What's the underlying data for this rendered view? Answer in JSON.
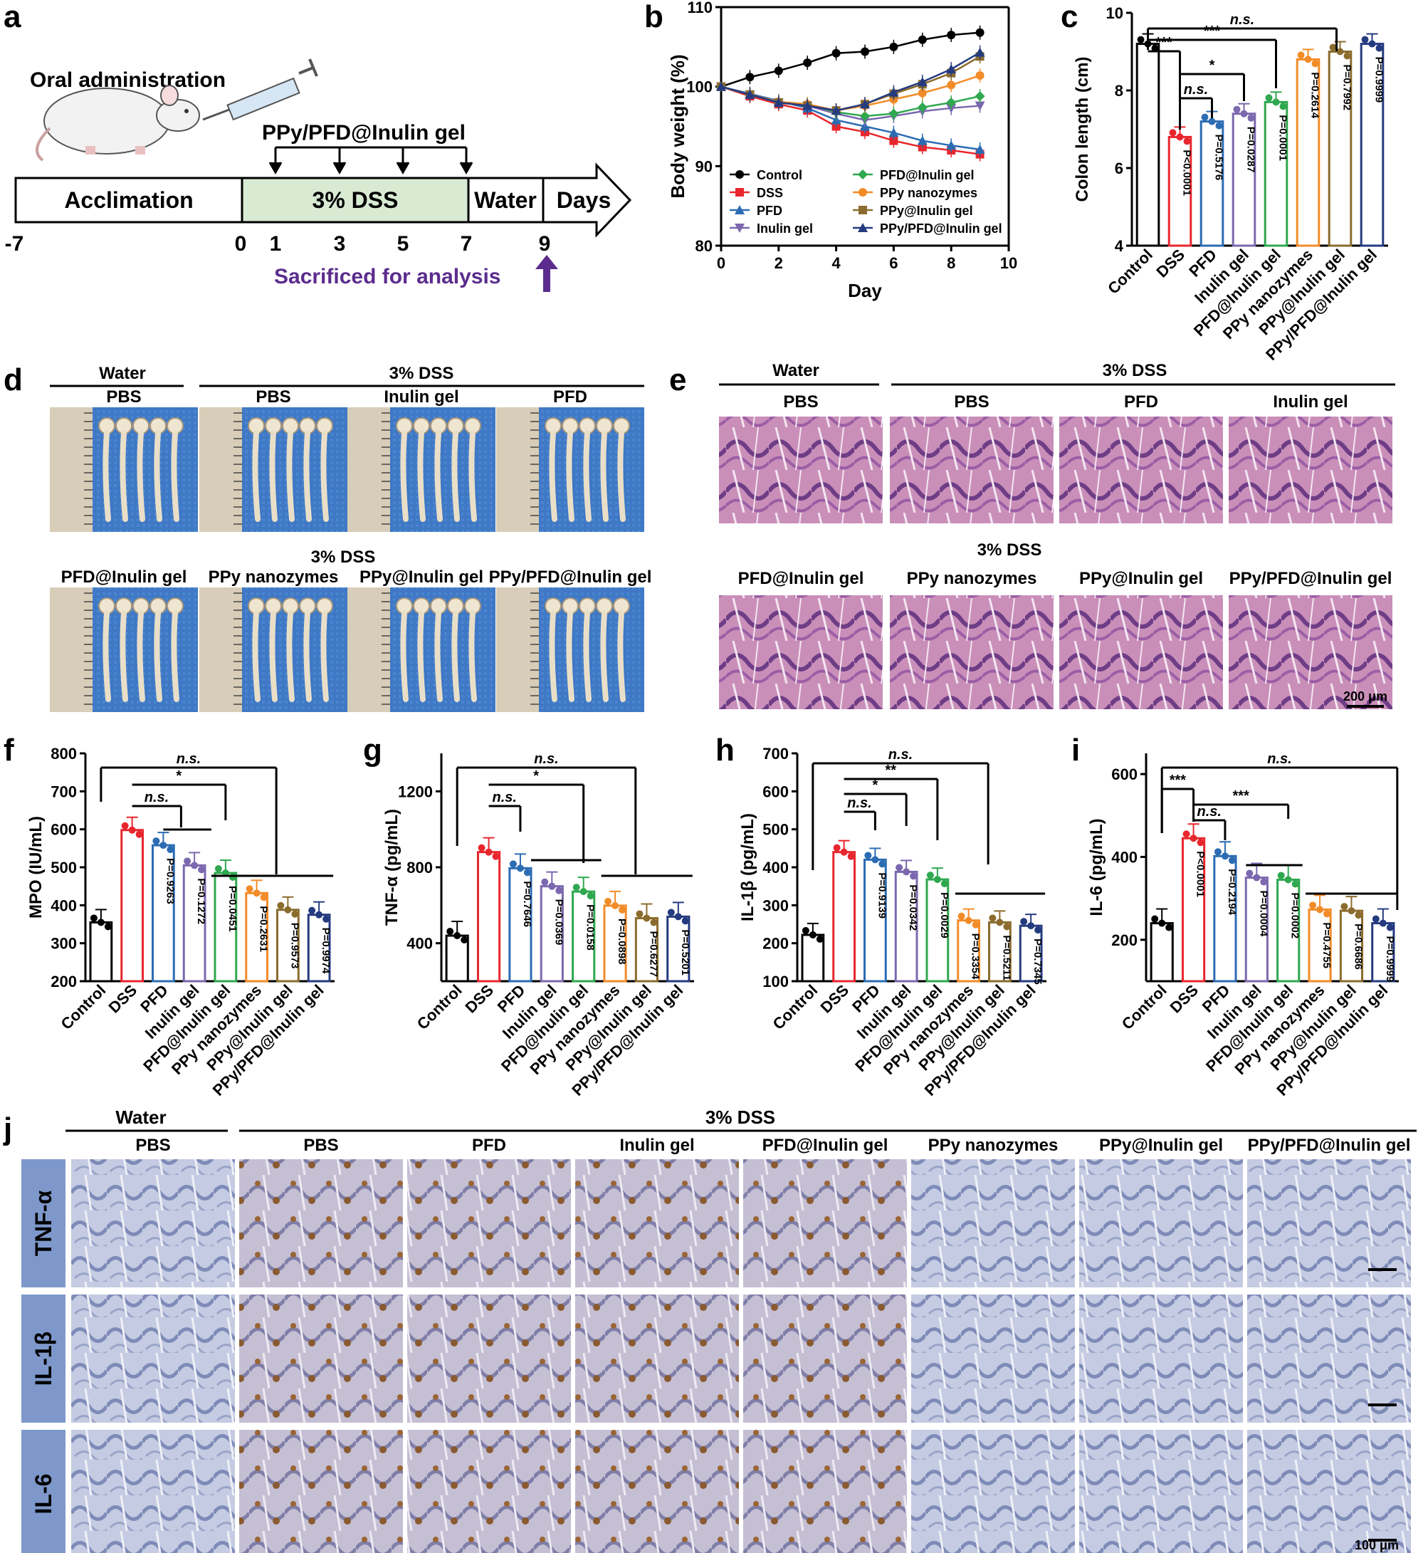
{
  "panel_letters": [
    "a",
    "b",
    "c",
    "d",
    "e",
    "f",
    "g",
    "h",
    "i",
    "j"
  ],
  "panel_a": {
    "title": "Oral administration",
    "treatment": "PPy/PFD@Inulin gel",
    "phases": [
      "Acclimation",
      "3% DSS",
      "Water",
      "Days"
    ],
    "ticks": [
      "-7",
      "0",
      "1",
      "3",
      "5",
      "7",
      "9"
    ],
    "sacrifice": "Sacrificed for analysis",
    "colors": {
      "dss_phase": "#d9ead3",
      "arrow": "#5b2c8d"
    }
  },
  "groups": [
    "Control",
    "DSS",
    "PFD",
    "Inulin gel",
    "PFD@Inulin gel",
    "PPy nanozymes",
    "PPy@Inulin gel",
    "PPy/PFD@Inulin gel"
  ],
  "group_colors": [
    "#000000",
    "#e8262d",
    "#2b6cb3",
    "#7b68ae",
    "#2fa84f",
    "#f28c28",
    "#8b6c2e",
    "#253b80"
  ],
  "significance": {
    "ns": "n.s.",
    "one": "*",
    "two": "**",
    "three": "***"
  },
  "chart_data": [
    {
      "id": "b",
      "type": "line",
      "xlabel": "Day",
      "ylabel": "Body weight (%)",
      "xlim": [
        0,
        10
      ],
      "ylim": [
        80,
        110
      ],
      "xticks": [
        "0",
        "2",
        "4",
        "6",
        "8",
        "10"
      ],
      "yticks": [
        "80",
        "90",
        "100",
        "110"
      ],
      "x": [
        0,
        1,
        2,
        3,
        4,
        5,
        6,
        7,
        8,
        9
      ],
      "legend": [
        "Control",
        "DSS",
        "PFD",
        "Inulin gel",
        "PFD@Inulin gel",
        "PPy nanozymes",
        "PPy@Inulin gel",
        "PPy/PFD@Inulin gel"
      ],
      "series": [
        {
          "name": "Control",
          "values": [
            100,
            101.2,
            102,
            103,
            104.2,
            104.4,
            105,
            105.9,
            106.5,
            106.8
          ]
        },
        {
          "name": "DSS",
          "values": [
            100,
            98.8,
            97.8,
            97,
            95,
            94.3,
            93.2,
            92.4,
            92,
            91.5
          ]
        },
        {
          "name": "PFD",
          "values": [
            100,
            99.1,
            98.2,
            97.3,
            95.8,
            95,
            94.2,
            93.2,
            92.6,
            92.1
          ]
        },
        {
          "name": "Inulin gel",
          "values": [
            100,
            99,
            98,
            97.6,
            96.6,
            95.8,
            96.3,
            96.9,
            97.3,
            97.6
          ]
        },
        {
          "name": "PFD@Inulin gel",
          "values": [
            100,
            99,
            98,
            97.8,
            96.8,
            96.3,
            96.6,
            97.4,
            98,
            98.8
          ]
        },
        {
          "name": "PPy nanozymes",
          "values": [
            100,
            99,
            98.1,
            97.8,
            97,
            97.6,
            98.4,
            99.2,
            100.2,
            101.4
          ]
        },
        {
          "name": "PPy@Inulin gel",
          "values": [
            100,
            99,
            98,
            97.6,
            97,
            97.8,
            99.1,
            100.3,
            101.7,
            103.8
          ]
        },
        {
          "name": "PPy/PFD@Inulin gel",
          "values": [
            100,
            99,
            98,
            97.6,
            97,
            97.8,
            99.3,
            100.6,
            102.2,
            104.3
          ]
        }
      ]
    },
    {
      "id": "c",
      "type": "bar",
      "ylabel": "Colon length (cm)",
      "ylim": [
        4,
        10
      ],
      "yticks": [
        "4",
        "6",
        "8",
        "10"
      ],
      "values": [
        9.2,
        6.8,
        7.2,
        7.4,
        7.7,
        8.8,
        9.0,
        9.2
      ],
      "p_values": [
        "",
        "P<0.0001",
        "P=0.5176",
        "P=0.0287",
        "P=0.0001",
        "P=0.2614",
        "P=0.7992",
        "P=0.9999"
      ]
    },
    {
      "id": "f",
      "type": "bar",
      "ylabel": "MPO (IU/mL)",
      "ylim": [
        200,
        800
      ],
      "yticks": [
        "200",
        "300",
        "400",
        "500",
        "600",
        "700",
        "800"
      ],
      "values": [
        355,
        598,
        558,
        505,
        485,
        432,
        388,
        375
      ],
      "p_values": [
        "",
        "P=0.9263",
        "P=0.1272",
        "P=0.0451",
        "P=0.2631",
        "P=0.9573",
        "P=0.9974"
      ]
    },
    {
      "id": "g",
      "type": "bar",
      "ylabel": "TNF-α (pg/mL)",
      "ylim": [
        200,
        1400
      ],
      "yticks": [
        "400",
        "800",
        "1200"
      ],
      "values": [
        440,
        880,
        795,
        700,
        672,
        598,
        532,
        540
      ],
      "p_values": [
        "",
        "P=0.7646",
        "P=0.0369",
        "P=0.0158",
        "P=0.0898",
        "P=0.6277",
        "P=0.5201"
      ]
    },
    {
      "id": "h",
      "type": "bar",
      "ylabel": "IL-1β (pg/mL)",
      "ylim": [
        100,
        700
      ],
      "yticks": [
        "100",
        "200",
        "300",
        "400",
        "500",
        "600",
        "700"
      ],
      "values": [
        222,
        440,
        420,
        388,
        368,
        260,
        255,
        246
      ],
      "p_values": [
        "",
        "P=0.9139",
        "P=0.0342",
        "P=0.0029",
        "P=0.3354",
        "P=0.5211",
        "P=0.7345"
      ]
    },
    {
      "id": "i",
      "type": "bar",
      "ylabel": "IL-6 (pg/mL)",
      "ylim": [
        100,
        650
      ],
      "yticks": [
        "200",
        "400",
        "600"
      ],
      "values": [
        240,
        445,
        402,
        350,
        345,
        273,
        270,
        240
      ],
      "p_values": [
        "P<0.0001",
        "P=0.2194",
        "P=0.0004",
        "P=0.0002",
        "P=0.4755",
        "P=0.6686",
        "P=0.9999"
      ]
    }
  ],
  "panel_d": {
    "header_top": [
      "Water",
      "3% DSS"
    ],
    "row1": [
      "PBS",
      "PBS",
      "Inulin gel",
      "PFD"
    ],
    "header_mid": "3% DSS",
    "row2": [
      "PFD@Inulin gel",
      "PPy nanozymes",
      "PPy@Inulin gel",
      "PPy/PFD@Inulin gel"
    ]
  },
  "panel_e": {
    "header_top": [
      "Water",
      "3% DSS"
    ],
    "row1": [
      "PBS",
      "PBS",
      "PFD",
      "Inulin gel"
    ],
    "header_mid": "3% DSS",
    "row2": [
      "PFD@Inulin gel",
      "PPy nanozymes",
      "PPy@Inulin gel",
      "PPy/PFD@Inulin gel"
    ],
    "scale": "200 μm"
  },
  "panel_j": {
    "header": [
      "Water",
      "3% DSS"
    ],
    "columns": [
      "PBS",
      "PBS",
      "PFD",
      "Inulin gel",
      "PFD@Inulin gel",
      "PPy nanozymes",
      "PPy@Inulin gel",
      "PPy/PFD@Inulin gel"
    ],
    "rows": [
      "TNF-α",
      "IL-1β",
      "IL-6"
    ],
    "scale": "100 μm"
  }
}
